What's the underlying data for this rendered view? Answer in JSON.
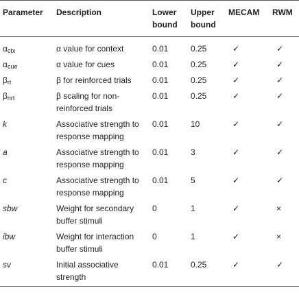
{
  "table": {
    "header": [
      "Parameter",
      "Description",
      "Lower bound",
      "Upper bound",
      "MECAM",
      "RWM"
    ],
    "rows": [
      {
        "symbol": "α",
        "subscript": "ctx",
        "description": "α value for context",
        "lower": "0.01",
        "upper": "0.25",
        "mecam": "✓",
        "rwm": "✓"
      },
      {
        "symbol": "α",
        "subscript": "cue",
        "description": "α value for cues",
        "lower": "0.01",
        "upper": "0.25",
        "mecam": "✓",
        "rwm": "✓"
      },
      {
        "symbol": "β",
        "subscript": "rt",
        "description": "β for reinforced trials",
        "lower": "0.01",
        "upper": "0.25",
        "mecam": "✓",
        "rwm": "✓"
      },
      {
        "symbol": "β",
        "subscript": "nrt",
        "description": "β scaling for non-reinforced trials",
        "lower": "0.01",
        "upper": "0.25",
        "mecam": "✓",
        "rwm": "✓"
      },
      {
        "symbol": "k",
        "italic": true,
        "description": "Associative strength to response mapping",
        "lower": "0.01",
        "upper": "10",
        "mecam": "✓",
        "rwm": "✓"
      },
      {
        "symbol": "a",
        "italic": true,
        "description": "Associative strength to response mapping",
        "lower": "0.01",
        "upper": "3",
        "mecam": "✓",
        "rwm": "✓"
      },
      {
        "symbol": "c",
        "italic": true,
        "description": "Associative strength to response mapping",
        "lower": "0.01",
        "upper": "5",
        "mecam": "✓",
        "rwm": "✓"
      },
      {
        "symbol": "sbw",
        "italic": true,
        "description": "Weight for secondary buffer stimuli",
        "lower": "0",
        "upper": "1",
        "mecam": "✓",
        "rwm": "×"
      },
      {
        "symbol": "ibw",
        "italic": true,
        "description": "Weight for interaction buffer stimuli",
        "lower": "0",
        "upper": "1",
        "mecam": "✓",
        "rwm": "×"
      },
      {
        "symbol": "sv",
        "italic": true,
        "description": "Initial associative strength",
        "lower": "0.01",
        "upper": "0.25",
        "mecam": "✓",
        "rwm": "✓"
      }
    ]
  }
}
